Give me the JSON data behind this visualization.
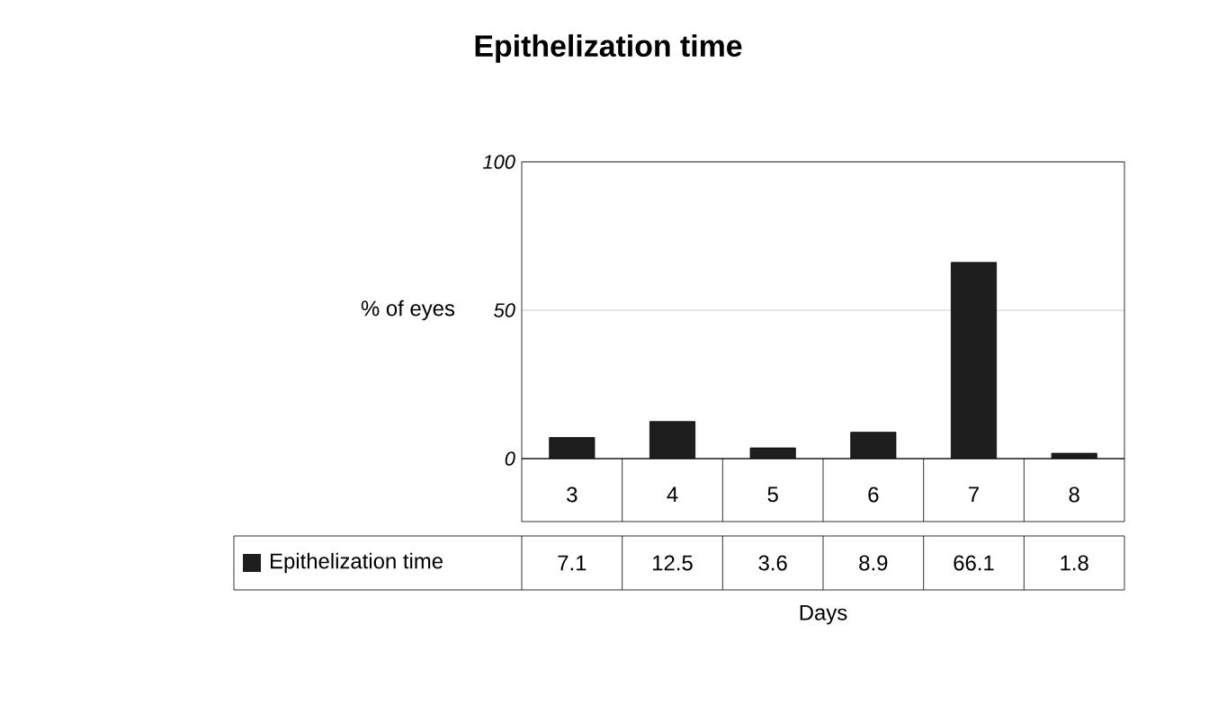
{
  "chart_data": {
    "type": "bar",
    "title": "Epithelization time",
    "xlabel": "Days",
    "ylabel": "% of eyes",
    "categories": [
      "3",
      "4",
      "5",
      "6",
      "7",
      "8"
    ],
    "series": [
      {
        "name": "Epithelization time",
        "color": "#1e1e1e",
        "values": [
          7.1,
          12.5,
          3.6,
          8.9,
          66.1,
          1.8
        ]
      }
    ],
    "ylim": [
      0,
      100
    ],
    "yticks": [
      0,
      50,
      100
    ],
    "grid": "y",
    "legend": "bottom",
    "data_labels": true
  }
}
